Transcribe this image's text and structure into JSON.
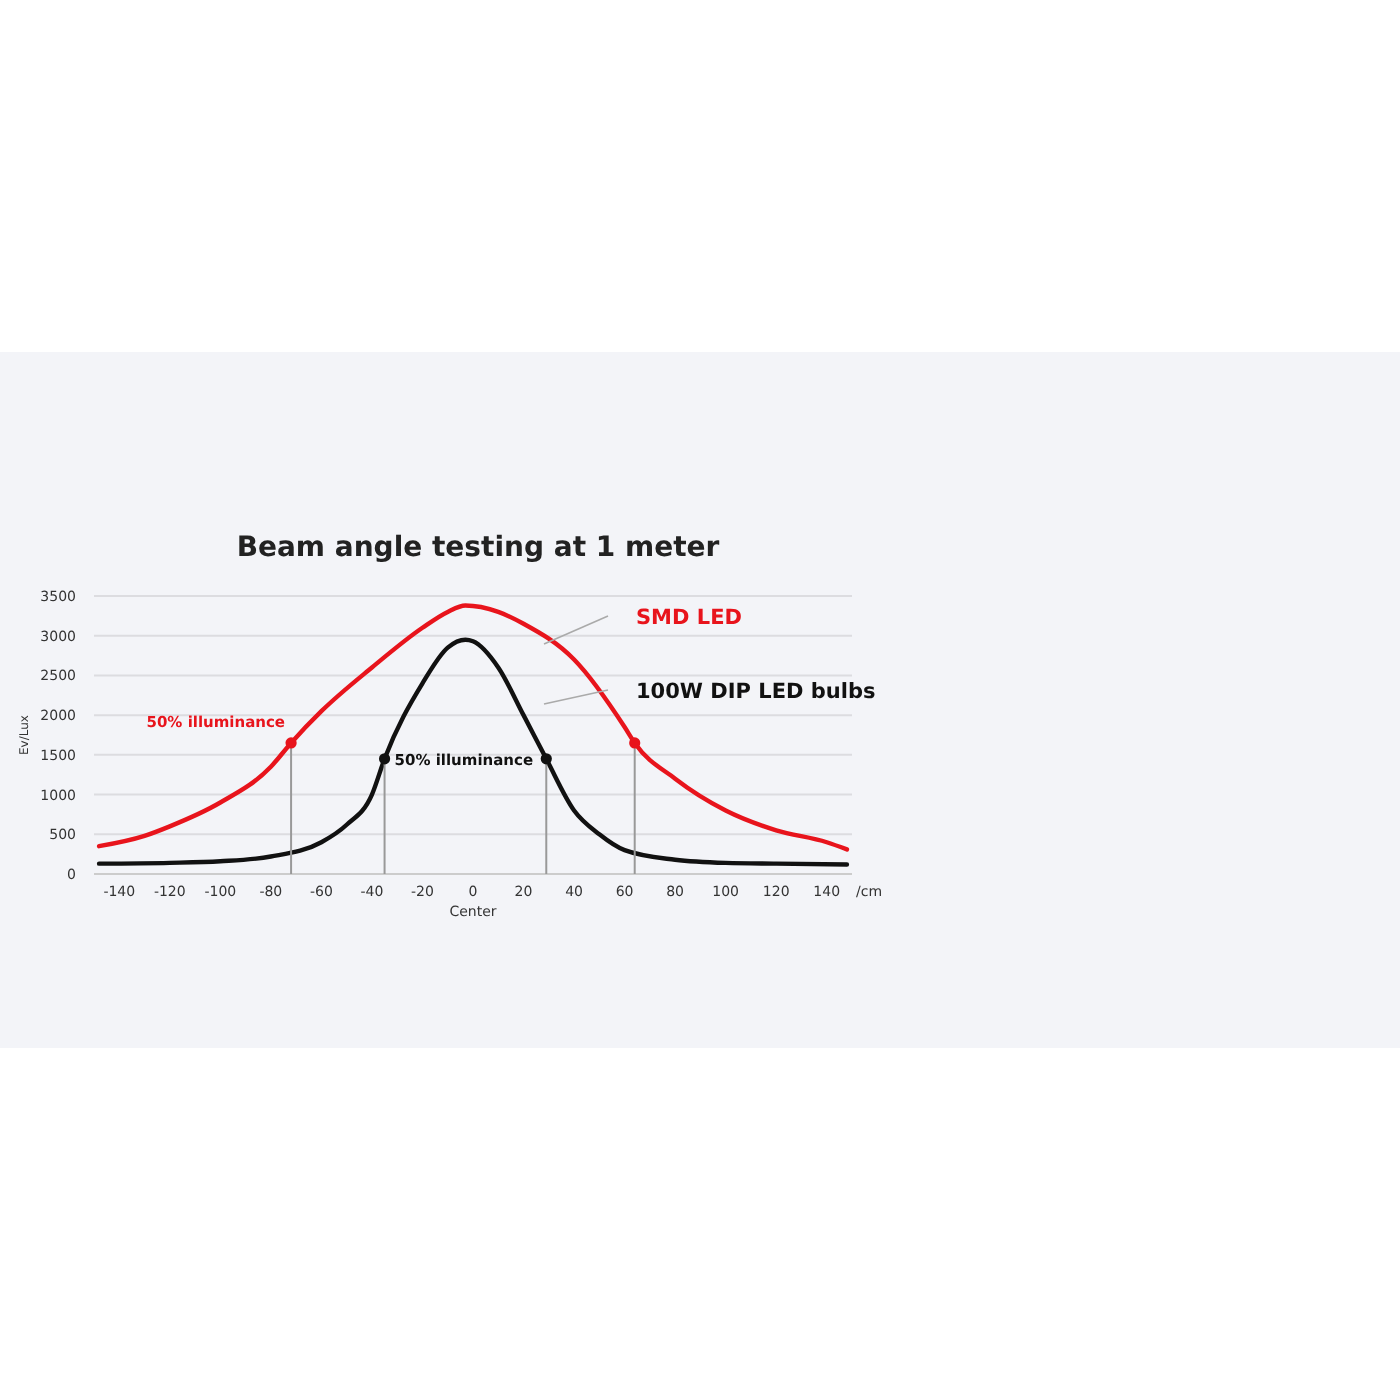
{
  "chart_data": {
    "type": "line",
    "title": "Beam angle testing at 1 meter",
    "xlabel": "Center",
    "ylabel": "Ev/Lux",
    "xlim": [
      -150,
      150
    ],
    "xticks": [
      -140,
      -120,
      -100,
      -80,
      -60,
      -40,
      -20,
      0,
      20,
      40,
      60,
      80,
      100,
      120,
      140
    ],
    "ylim": [
      0,
      3500
    ],
    "yticks": [
      0,
      500,
      1000,
      1500,
      2000,
      2500,
      3000,
      3500
    ],
    "grid": "y",
    "annotations": [
      "/cm",
      {
        "text": "50% illuminance",
        "x": -72,
        "y": 1650
      },
      {
        "text": "50% illuminance",
        "x": -35,
        "y": 1450
      }
    ],
    "series": [
      {
        "name": "SMD LED",
        "color": "#e8141c",
        "x": [
          -148,
          -130,
          -120,
          -100,
          -80,
          -72,
          -60,
          -40,
          -20,
          -10,
          -3,
          10,
          20,
          40,
          60,
          64,
          80,
          100,
          120,
          140,
          148
        ],
        "values": [
          350,
          480,
          600,
          900,
          1350,
          1650,
          2050,
          2600,
          3100,
          3300,
          3380,
          3300,
          3150,
          2700,
          1850,
          1650,
          1200,
          800,
          550,
          400,
          310
        ]
      },
      {
        "name": "100W DIP LED bulbs",
        "color": "#111111",
        "x": [
          -148,
          -120,
          -100,
          -80,
          -60,
          -50,
          -40,
          -35,
          -20,
          -10,
          -3,
          0,
          10,
          20,
          29,
          40,
          50,
          60,
          80,
          100,
          120,
          148
        ],
        "values": [
          130,
          140,
          160,
          220,
          400,
          620,
          1000,
          1450,
          2400,
          2850,
          2950,
          2930,
          2600,
          2000,
          1450,
          800,
          500,
          300,
          180,
          140,
          130,
          120
        ]
      },
      {
        "type": "lollipop",
        "color": "#e8141c",
        "x": [
          -72,
          64
        ],
        "values": [
          1650,
          1650
        ]
      },
      {
        "type": "lollipop",
        "color": "#111111",
        "x": [
          -35,
          29
        ],
        "values": [
          1450,
          1450
        ]
      }
    ]
  }
}
